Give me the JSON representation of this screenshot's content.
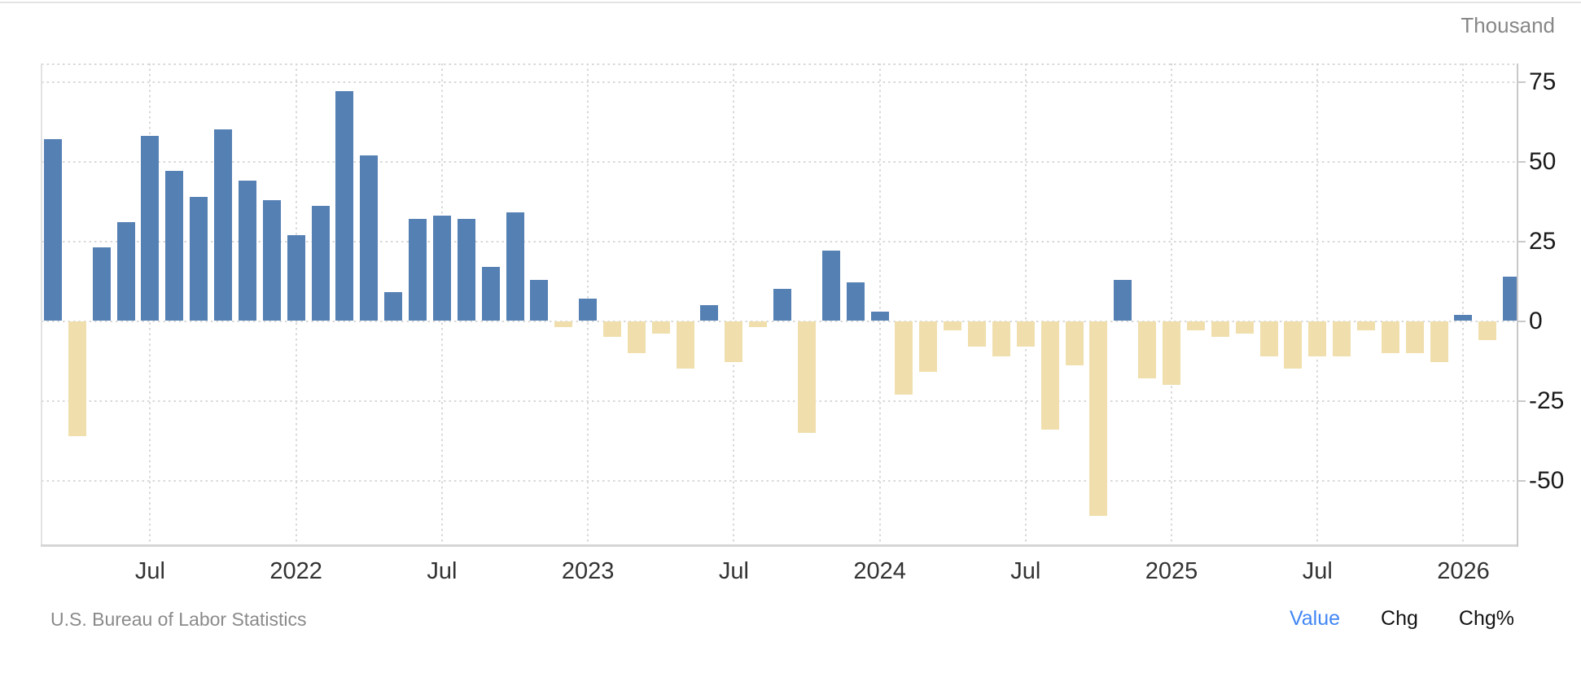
{
  "chart_data": {
    "type": "bar",
    "unit_label": "Thousand",
    "y_axis": {
      "tick_values": [
        75,
        50,
        25,
        0,
        -25,
        -50
      ],
      "tick_labels": [
        "75",
        "50",
        "25",
        "0",
        "-25",
        "-50"
      ],
      "min": -70,
      "max": 80,
      "grid": "dotted"
    },
    "x_axis": {
      "ticks": [
        {
          "label": "Jul",
          "month_index": 4
        },
        {
          "label": "2022",
          "month_index": 10
        },
        {
          "label": "Jul",
          "month_index": 16
        },
        {
          "label": "2023",
          "month_index": 22
        },
        {
          "label": "Jul",
          "month_index": 28
        },
        {
          "label": "2024",
          "month_index": 34
        },
        {
          "label": "Jul",
          "month_index": 40
        },
        {
          "label": "2025",
          "month_index": 46
        },
        {
          "label": "Jul",
          "month_index": 52
        },
        {
          "label": "2026",
          "month_index": 58
        }
      ]
    },
    "colors": {
      "positive_bar": "#5580b4",
      "negative_bar": "#f0dfad"
    },
    "points": [
      {
        "month": "Mar 2021",
        "value": 57
      },
      {
        "month": "Apr 2021",
        "value": -36
      },
      {
        "month": "May 2021",
        "value": 23
      },
      {
        "month": "Jun 2021",
        "value": 31
      },
      {
        "month": "Jul 2021",
        "value": 58
      },
      {
        "month": "Aug 2021",
        "value": 47
      },
      {
        "month": "Sep 2021",
        "value": 39
      },
      {
        "month": "Oct 2021",
        "value": 60
      },
      {
        "month": "Nov 2021",
        "value": 44
      },
      {
        "month": "Dec 2021",
        "value": 38
      },
      {
        "month": "Jan 2022",
        "value": 27
      },
      {
        "month": "Feb 2022",
        "value": 36
      },
      {
        "month": "Mar 2022",
        "value": 72
      },
      {
        "month": "Apr 2022",
        "value": 52
      },
      {
        "month": "May 2022",
        "value": 9
      },
      {
        "month": "Jun 2022",
        "value": 32
      },
      {
        "month": "Jul 2022",
        "value": 33
      },
      {
        "month": "Aug 2022",
        "value": 32
      },
      {
        "month": "Sep 2022",
        "value": 17
      },
      {
        "month": "Oct 2022",
        "value": 34
      },
      {
        "month": "Nov 2022",
        "value": 13
      },
      {
        "month": "Dec 2022",
        "value": -2
      },
      {
        "month": "Jan 2023",
        "value": 7
      },
      {
        "month": "Feb 2023",
        "value": -5
      },
      {
        "month": "Mar 2023",
        "value": -10
      },
      {
        "month": "Apr 2023",
        "value": -4
      },
      {
        "month": "May 2023",
        "value": -15
      },
      {
        "month": "Jun 2023",
        "value": 5
      },
      {
        "month": "Jul 2023",
        "value": -13
      },
      {
        "month": "Aug 2023",
        "value": -2
      },
      {
        "month": "Sep 2023",
        "value": 10
      },
      {
        "month": "Oct 2023",
        "value": -35
      },
      {
        "month": "Nov 2023",
        "value": 22
      },
      {
        "month": "Dec 2023",
        "value": 12
      },
      {
        "month": "Jan 2024",
        "value": 3
      },
      {
        "month": "Feb 2024",
        "value": -23
      },
      {
        "month": "Mar 2024",
        "value": -16
      },
      {
        "month": "Apr 2024",
        "value": -3
      },
      {
        "month": "May 2024",
        "value": -8
      },
      {
        "month": "Jun 2024",
        "value": -11
      },
      {
        "month": "Jul 2024",
        "value": -8
      },
      {
        "month": "Aug 2024",
        "value": -34
      },
      {
        "month": "Sep 2024",
        "value": -14
      },
      {
        "month": "Oct 2024",
        "value": -61
      },
      {
        "month": "Nov 2024",
        "value": 13
      },
      {
        "month": "Dec 2024",
        "value": -18
      },
      {
        "month": "Jan 2025",
        "value": -20
      },
      {
        "month": "Feb 2025",
        "value": -3
      },
      {
        "month": "Mar 2025",
        "value": -5
      },
      {
        "month": "Apr 2025",
        "value": -4
      },
      {
        "month": "May 2025",
        "value": -11
      },
      {
        "month": "Jun 2025",
        "value": -15
      },
      {
        "month": "Jul 2025",
        "value": -11
      },
      {
        "month": "Aug 2025",
        "value": -11
      },
      {
        "month": "Sep 2025",
        "value": -3
      },
      {
        "month": "Oct 2025",
        "value": -10
      },
      {
        "month": "Nov 2025",
        "value": -10
      },
      {
        "month": "Dec 2025",
        "value": -13
      },
      {
        "month": "Jan 2026",
        "value": 2
      },
      {
        "month": "Feb 2026",
        "value": -6
      },
      {
        "month": "Mar 2026",
        "value": 14
      }
    ]
  },
  "footer": {
    "source": "U.S. Bureau of Labor Statistics",
    "views": [
      {
        "label": "Value",
        "active": true
      },
      {
        "label": "Chg",
        "active": false
      },
      {
        "label": "Chg%",
        "active": false
      }
    ],
    "active_color": "#4186f4"
  }
}
